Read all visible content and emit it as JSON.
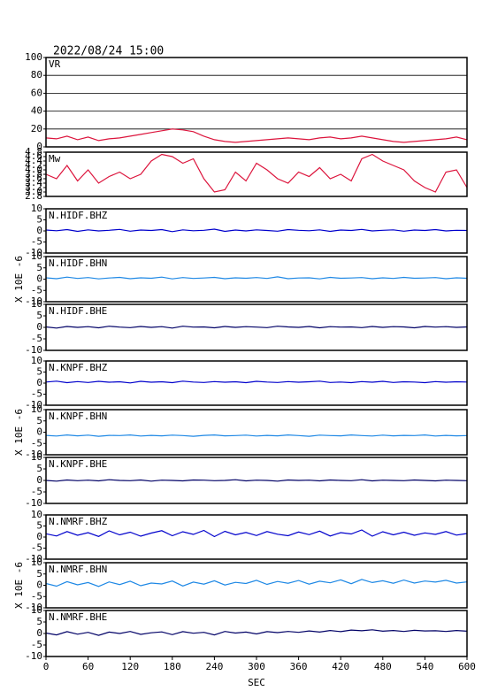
{
  "chart_data": [
    {
      "type": "line",
      "title": "2022/08/24 15:00",
      "xlim": [
        0,
        600
      ],
      "ylim": [
        0,
        100
      ],
      "yticks": [
        0,
        20,
        40,
        60,
        80,
        100
      ],
      "grid": true,
      "x": [
        0,
        15,
        30,
        45,
        60,
        75,
        90,
        105,
        120,
        135,
        150,
        165,
        180,
        195,
        210,
        225,
        240,
        255,
        270,
        285,
        300,
        315,
        330,
        345,
        360,
        375,
        390,
        405,
        420,
        435,
        450,
        465,
        480,
        495,
        510,
        525,
        540,
        555,
        570,
        585,
        600
      ],
      "series": [
        {
          "name": "VR",
          "color": "#dc143c",
          "values": [
            10,
            9,
            12,
            8,
            11,
            7,
            9,
            10,
            12,
            14,
            16,
            18,
            20,
            19,
            17,
            12,
            8,
            6,
            5,
            6,
            7,
            8,
            9,
            10,
            9,
            8,
            10,
            11,
            9,
            10,
            12,
            10,
            8,
            6,
            5,
            6,
            7,
            8,
            9,
            11,
            8
          ]
        }
      ]
    },
    {
      "type": "line",
      "xlim": [
        0,
        600
      ],
      "ylim": [
        2.8,
        4.8
      ],
      "yticks": [
        2.8,
        {
          "value": 3,
          "label": "3.0"
        },
        3.2,
        3.4,
        3.6,
        3.8,
        {
          "value": 4,
          "label": "4.0"
        },
        4.2,
        4.4,
        4.6,
        4.8
      ],
      "x": [
        0,
        15,
        30,
        45,
        60,
        75,
        90,
        105,
        120,
        135,
        150,
        165,
        180,
        195,
        210,
        225,
        240,
        255,
        270,
        285,
        300,
        315,
        330,
        345,
        360,
        375,
        390,
        405,
        420,
        435,
        450,
        465,
        480,
        495,
        510,
        525,
        540,
        555,
        570,
        585,
        600
      ],
      "series": [
        {
          "name": "Mw",
          "color": "#dc143c",
          "values": [
            3.8,
            3.6,
            4.2,
            3.5,
            4.0,
            3.4,
            3.7,
            3.9,
            3.6,
            3.8,
            4.4,
            4.7,
            4.6,
            4.3,
            4.5,
            3.6,
            3.0,
            3.1,
            3.9,
            3.5,
            4.3,
            4.0,
            3.6,
            3.4,
            3.9,
            3.7,
            4.1,
            3.6,
            3.8,
            3.5,
            4.5,
            4.7,
            4.4,
            4.2,
            4.0,
            3.5,
            3.2,
            3.0,
            3.9,
            4.0,
            3.2
          ]
        }
      ]
    },
    {
      "type": "line",
      "xlim": [
        0,
        600
      ],
      "ylim": [
        -10,
        10
      ],
      "yticks": [
        -10,
        -5,
        0,
        5,
        10
      ],
      "x": [
        0,
        15,
        30,
        45,
        60,
        75,
        90,
        105,
        120,
        135,
        150,
        165,
        180,
        195,
        210,
        225,
        240,
        255,
        270,
        285,
        300,
        315,
        330,
        345,
        360,
        375,
        390,
        405,
        420,
        435,
        450,
        465,
        480,
        495,
        510,
        525,
        540,
        555,
        570,
        585,
        600
      ],
      "series": [
        {
          "name": "N.HIDF.BHZ",
          "color": "#0000cc",
          "values": [
            0.4,
            0.1,
            0.6,
            -0.2,
            0.5,
            0.0,
            0.3,
            0.7,
            -0.1,
            0.4,
            0.2,
            0.6,
            -0.3,
            0.5,
            0.1,
            0.3,
            0.8,
            -0.2,
            0.4,
            0.0,
            0.5,
            0.2,
            -0.1,
            0.6,
            0.3,
            0.1,
            0.5,
            -0.2,
            0.4,
            0.2,
            0.7,
            0.0,
            0.3,
            0.5,
            -0.1,
            0.4,
            0.2,
            0.6,
            0.0,
            0.3,
            0.2
          ]
        }
      ]
    },
    {
      "type": "line",
      "xlim": [
        0,
        600
      ],
      "ylim": [
        -10,
        10
      ],
      "yticks": [
        -10,
        -5,
        0,
        5,
        10
      ],
      "x": [
        0,
        15,
        30,
        45,
        60,
        75,
        90,
        105,
        120,
        135,
        150,
        165,
        180,
        195,
        210,
        225,
        240,
        255,
        270,
        285,
        300,
        315,
        330,
        345,
        360,
        375,
        390,
        405,
        420,
        435,
        450,
        465,
        480,
        495,
        510,
        525,
        540,
        555,
        570,
        585,
        600
      ],
      "ylabel": "X 10E -6",
      "series": [
        {
          "name": "N.HIDF.BHN",
          "color": "#1e88e5",
          "values": [
            0.6,
            0.2,
            0.9,
            0.3,
            0.7,
            0.1,
            0.5,
            0.8,
            0.2,
            0.6,
            0.4,
            0.9,
            0.1,
            0.7,
            0.3,
            0.5,
            0.8,
            0.2,
            0.6,
            0.4,
            0.7,
            0.3,
            1.0,
            0.2,
            0.5,
            0.6,
            0.1,
            0.8,
            0.4,
            0.5,
            0.7,
            0.2,
            0.6,
            0.3,
            0.8,
            0.4,
            0.5,
            0.7,
            0.2,
            0.6,
            0.4
          ]
        }
      ]
    },
    {
      "type": "line",
      "xlim": [
        0,
        600
      ],
      "ylim": [
        -10,
        10
      ],
      "yticks": [
        -10,
        -5,
        0,
        5,
        10
      ],
      "x": [
        0,
        15,
        30,
        45,
        60,
        75,
        90,
        105,
        120,
        135,
        150,
        165,
        180,
        195,
        210,
        225,
        240,
        255,
        270,
        285,
        300,
        315,
        330,
        345,
        360,
        375,
        390,
        405,
        420,
        435,
        450,
        465,
        480,
        495,
        510,
        525,
        540,
        555,
        570,
        585,
        600
      ],
      "series": [
        {
          "name": "N.HIDF.BHE",
          "color": "#000066",
          "values": [
            0.2,
            -0.3,
            0.4,
            0.0,
            0.3,
            -0.2,
            0.5,
            0.1,
            -0.1,
            0.4,
            0.0,
            0.3,
            -0.3,
            0.5,
            0.1,
            0.2,
            -0.2,
            0.4,
            0.0,
            0.3,
            0.1,
            -0.1,
            0.5,
            0.2,
            0.0,
            0.4,
            -0.2,
            0.3,
            0.1,
            0.2,
            -0.1,
            0.4,
            0.0,
            0.3,
            0.2,
            -0.2,
            0.4,
            0.1,
            0.3,
            0.0,
            0.2
          ]
        }
      ]
    },
    {
      "type": "line",
      "xlim": [
        0,
        600
      ],
      "ylim": [
        -10,
        10
      ],
      "yticks": [
        -10,
        -5,
        0,
        5,
        10
      ],
      "x": [
        0,
        15,
        30,
        45,
        60,
        75,
        90,
        105,
        120,
        135,
        150,
        165,
        180,
        195,
        210,
        225,
        240,
        255,
        270,
        285,
        300,
        315,
        330,
        345,
        360,
        375,
        390,
        405,
        420,
        435,
        450,
        465,
        480,
        495,
        510,
        525,
        540,
        555,
        570,
        585,
        600
      ],
      "series": [
        {
          "name": "N.KNPF.BHZ",
          "color": "#0000cc",
          "values": [
            0.5,
            0.9,
            0.2,
            0.7,
            0.3,
            0.8,
            0.4,
            0.6,
            0.1,
            0.8,
            0.4,
            0.6,
            0.2,
            0.9,
            0.5,
            0.3,
            0.7,
            0.4,
            0.6,
            0.2,
            0.8,
            0.5,
            0.3,
            0.7,
            0.4,
            0.6,
            0.9,
            0.3,
            0.5,
            0.2,
            0.7,
            0.4,
            0.8,
            0.3,
            0.6,
            0.5,
            0.2,
            0.7,
            0.4,
            0.6,
            0.5
          ]
        }
      ]
    },
    {
      "type": "line",
      "xlim": [
        0,
        600
      ],
      "ylim": [
        -10,
        10
      ],
      "yticks": [
        -10,
        -5,
        0,
        5,
        10
      ],
      "x": [
        0,
        15,
        30,
        45,
        60,
        75,
        90,
        105,
        120,
        135,
        150,
        165,
        180,
        195,
        210,
        225,
        240,
        255,
        270,
        285,
        300,
        315,
        330,
        345,
        360,
        375,
        390,
        405,
        420,
        435,
        450,
        465,
        480,
        495,
        510,
        525,
        540,
        555,
        570,
        585,
        600
      ],
      "ylabel": "X 10E -6",
      "series": [
        {
          "name": "N.KNPF.BHN",
          "color": "#1e88e5",
          "values": [
            -1.4,
            -1.7,
            -1.2,
            -1.6,
            -1.3,
            -1.8,
            -1.4,
            -1.5,
            -1.2,
            -1.7,
            -1.4,
            -1.6,
            -1.3,
            -1.5,
            -1.8,
            -1.4,
            -1.2,
            -1.6,
            -1.5,
            -1.3,
            -1.7,
            -1.4,
            -1.6,
            -1.2,
            -1.5,
            -1.8,
            -1.3,
            -1.5,
            -1.6,
            -1.2,
            -1.5,
            -1.7,
            -1.3,
            -1.6,
            -1.4,
            -1.5,
            -1.2,
            -1.7,
            -1.4,
            -1.6,
            -1.5
          ]
        }
      ]
    },
    {
      "type": "line",
      "xlim": [
        0,
        600
      ],
      "ylim": [
        -10,
        10
      ],
      "yticks": [
        -10,
        -5,
        0,
        5,
        10
      ],
      "x": [
        0,
        15,
        30,
        45,
        60,
        75,
        90,
        105,
        120,
        135,
        150,
        165,
        180,
        195,
        210,
        225,
        240,
        255,
        270,
        285,
        300,
        315,
        330,
        345,
        360,
        375,
        390,
        405,
        420,
        435,
        450,
        465,
        480,
        495,
        510,
        525,
        540,
        555,
        570,
        585,
        600
      ],
      "series": [
        {
          "name": "N.KNPF.BHE",
          "color": "#000066",
          "values": [
            0.0,
            -0.3,
            0.2,
            -0.1,
            0.1,
            -0.2,
            0.3,
            0.0,
            -0.1,
            0.2,
            -0.3,
            0.1,
            0.0,
            -0.2,
            0.2,
            0.1,
            -0.1,
            0.0,
            0.3,
            -0.2,
            0.1,
            0.0,
            -0.3,
            0.2,
            0.0,
            0.1,
            -0.2,
            0.2,
            0.0,
            -0.1,
            0.3,
            -0.2,
            0.1,
            0.0,
            -0.1,
            0.2,
            0.0,
            -0.2,
            0.1,
            0.0,
            -0.1
          ]
        }
      ]
    },
    {
      "type": "line",
      "xlim": [
        0,
        600
      ],
      "ylim": [
        -10,
        10
      ],
      "yticks": [
        -10,
        -5,
        0,
        5,
        10
      ],
      "x": [
        0,
        15,
        30,
        45,
        60,
        75,
        90,
        105,
        120,
        135,
        150,
        165,
        180,
        195,
        210,
        225,
        240,
        255,
        270,
        285,
        300,
        315,
        330,
        345,
        360,
        375,
        390,
        405,
        420,
        435,
        450,
        465,
        480,
        495,
        510,
        525,
        540,
        555,
        570,
        585,
        600
      ],
      "series": [
        {
          "name": "N.NMRF.BHZ",
          "color": "#0000cc",
          "values": [
            1.5,
            0.5,
            2.5,
            0.8,
            2.0,
            0.3,
            2.8,
            1.0,
            2.2,
            0.4,
            1.8,
            2.9,
            0.6,
            2.4,
            1.2,
            3.0,
            0.2,
            2.6,
            1.0,
            2.1,
            0.7,
            2.5,
            1.3,
            0.6,
            2.3,
            1.1,
            2.7,
            0.5,
            2.0,
            1.4,
            3.2,
            0.4,
            2.4,
            1.0,
            2.2,
            0.8,
            1.9,
            1.2,
            2.5,
            0.9,
            1.6
          ]
        }
      ]
    },
    {
      "type": "line",
      "xlim": [
        0,
        600
      ],
      "ylim": [
        -10,
        10
      ],
      "yticks": [
        -10,
        -5,
        0,
        5,
        10
      ],
      "x": [
        0,
        15,
        30,
        45,
        60,
        75,
        90,
        105,
        120,
        135,
        150,
        165,
        180,
        195,
        210,
        225,
        240,
        255,
        270,
        285,
        300,
        315,
        330,
        345,
        360,
        375,
        390,
        405,
        420,
        435,
        450,
        465,
        480,
        495,
        510,
        525,
        540,
        555,
        570,
        585,
        600
      ],
      "ylabel": "X 10E -6",
      "series": [
        {
          "name": "N.NMRF.BHN",
          "color": "#1e88e5",
          "values": [
            0.8,
            -0.4,
            1.6,
            0.2,
            1.2,
            -0.5,
            1.5,
            0.3,
            1.8,
            -0.2,
            1.0,
            0.6,
            1.9,
            -0.3,
            1.4,
            0.5,
            2.0,
            0.1,
            1.3,
            0.8,
            2.2,
            0.4,
            1.7,
            0.9,
            2.1,
            0.5,
            1.8,
            1.1,
            2.4,
            0.7,
            2.6,
            1.2,
            2.0,
            0.9,
            2.3,
            1.0,
            1.9,
            1.4,
            2.2,
            1.0,
            1.5
          ]
        }
      ]
    },
    {
      "type": "line",
      "xlim": [
        0,
        600
      ],
      "ylim": [
        -10,
        10
      ],
      "yticks": [
        -10,
        -5,
        0,
        5,
        10
      ],
      "xlabel": "SEC",
      "x": [
        0,
        15,
        30,
        45,
        60,
        75,
        90,
        105,
        120,
        135,
        150,
        165,
        180,
        195,
        210,
        225,
        240,
        255,
        270,
        285,
        300,
        315,
        330,
        345,
        360,
        375,
        390,
        405,
        420,
        435,
        450,
        465,
        480,
        495,
        510,
        525,
        540,
        555,
        570,
        585,
        600
      ],
      "xticks": [
        0,
        60,
        120,
        180,
        240,
        300,
        360,
        420,
        480,
        540,
        600
      ],
      "series": [
        {
          "name": "N.NMRF.BHE",
          "color": "#000066",
          "values": [
            0.2,
            -0.6,
            0.8,
            -0.3,
            0.5,
            -0.8,
            0.6,
            0.0,
            0.9,
            -0.4,
            0.3,
            0.7,
            -0.5,
            0.8,
            0.1,
            0.5,
            -0.6,
            0.9,
            0.2,
            0.6,
            -0.2,
            0.8,
            0.4,
            0.9,
            0.5,
            1.1,
            0.6,
            1.3,
            0.8,
            1.5,
            1.2,
            1.6,
            1.0,
            1.3,
            0.9,
            1.4,
            1.1,
            1.2,
            0.9,
            1.3,
            1.0
          ]
        }
      ]
    }
  ]
}
